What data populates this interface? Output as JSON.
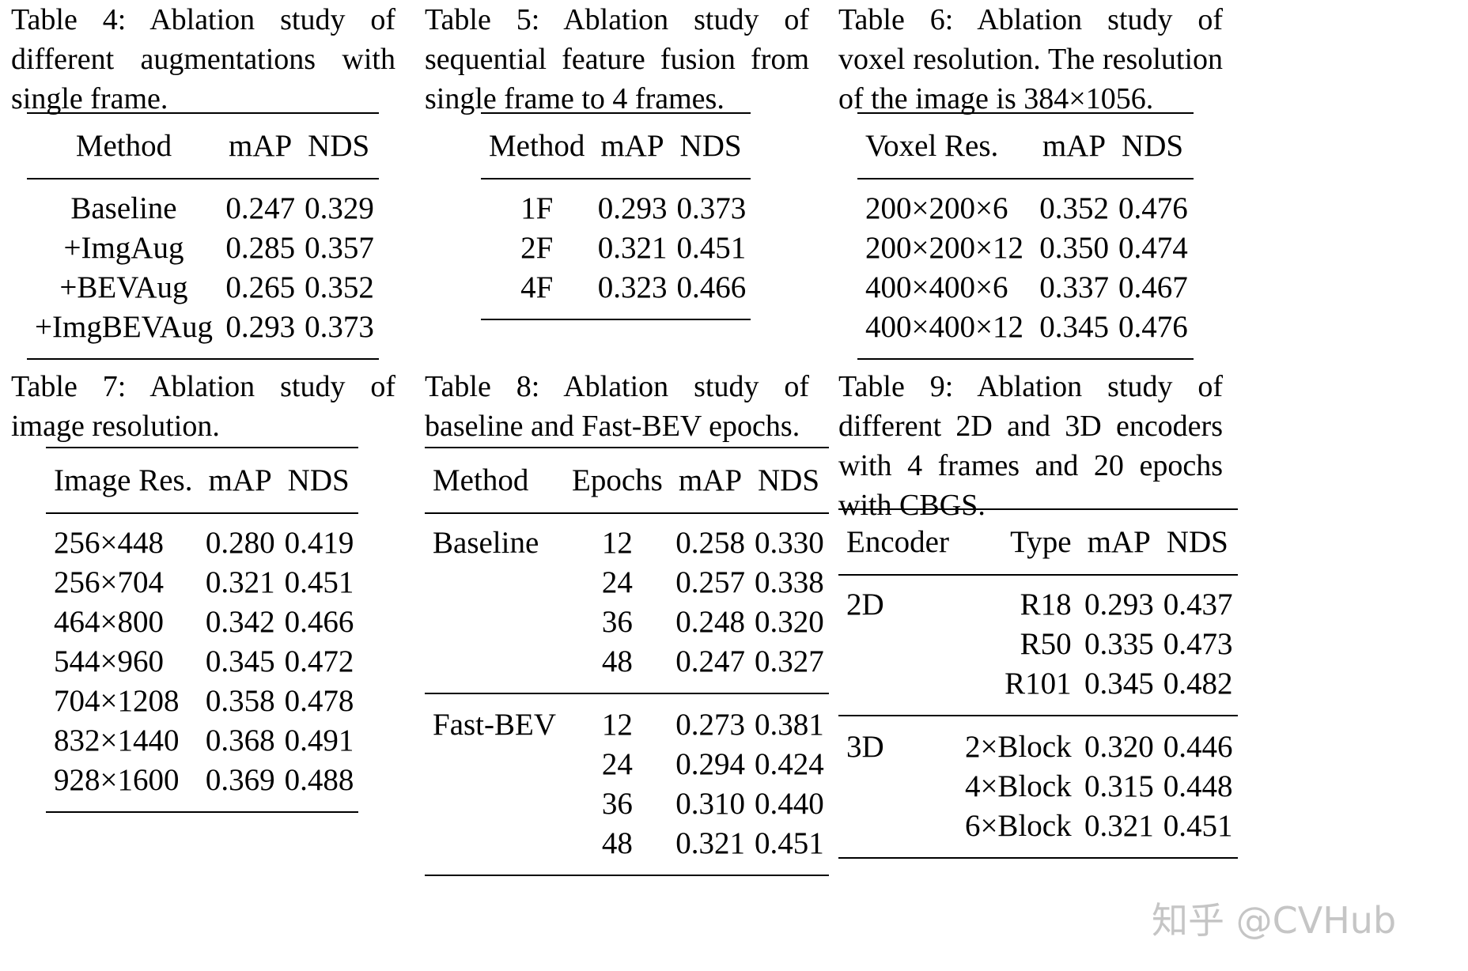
{
  "tables": [
    {
      "label": "Table 4:",
      "caption": "Ablation study of different augmentations with single frame.",
      "headers": [
        "Method",
        "mAP",
        "NDS"
      ],
      "rows": [
        [
          "Baseline",
          "0.247",
          "0.329"
        ],
        [
          "+ImgAug",
          "0.285",
          "0.357"
        ],
        [
          "+BEVAug",
          "0.265",
          "0.352"
        ],
        [
          "+ImgBEVAug",
          "0.293",
          "0.373"
        ]
      ]
    },
    {
      "label": "Table 5:",
      "caption": "Ablation study of sequential feature fusion from single frame to 4 frames.",
      "headers": [
        "Method",
        "mAP",
        "NDS"
      ],
      "rows": [
        [
          "1F",
          "0.293",
          "0.373"
        ],
        [
          "2F",
          "0.321",
          "0.451"
        ],
        [
          "4F",
          "0.323",
          "0.466"
        ]
      ]
    },
    {
      "label": "Table 6:",
      "caption": "Ablation study of voxel resolution. The resolution of the image is 384×1056.",
      "headers": [
        "Voxel Res.",
        "mAP",
        "NDS"
      ],
      "rows": [
        [
          "200×200×6",
          "0.352",
          "0.476"
        ],
        [
          "200×200×12",
          "0.350",
          "0.474"
        ],
        [
          "400×400×6",
          "0.337",
          "0.467"
        ],
        [
          "400×400×12",
          "0.345",
          "0.476"
        ]
      ]
    },
    {
      "label": "Table 7:",
      "caption": "Ablation study of image resolution.",
      "headers": [
        "Image Res.",
        "mAP",
        "NDS"
      ],
      "rows": [
        [
          "256×448",
          "0.280",
          "0.419"
        ],
        [
          "256×704",
          "0.321",
          "0.451"
        ],
        [
          "464×800",
          "0.342",
          "0.466"
        ],
        [
          "544×960",
          "0.345",
          "0.472"
        ],
        [
          "704×1208",
          "0.358",
          "0.478"
        ],
        [
          "832×1440",
          "0.368",
          "0.491"
        ],
        [
          "928×1600",
          "0.369",
          "0.488"
        ]
      ]
    },
    {
      "label": "Table 8:",
      "caption": "Ablation study of baseline and Fast-BEV epochs.",
      "headers": [
        "Method",
        "Epochs",
        "mAP",
        "NDS"
      ],
      "groups": [
        {
          "name": "Baseline",
          "rows": [
            [
              "12",
              "0.258",
              "0.330"
            ],
            [
              "24",
              "0.257",
              "0.338"
            ],
            [
              "36",
              "0.248",
              "0.320"
            ],
            [
              "48",
              "0.247",
              "0.327"
            ]
          ]
        },
        {
          "name": "Fast-BEV",
          "rows": [
            [
              "12",
              "0.273",
              "0.381"
            ],
            [
              "24",
              "0.294",
              "0.424"
            ],
            [
              "36",
              "0.310",
              "0.440"
            ],
            [
              "48",
              "0.321",
              "0.451"
            ]
          ]
        }
      ]
    },
    {
      "label": "Table 9:",
      "caption": "Ablation study of different 2D and 3D encoders with 4 frames and 20 epochs with CBGS.",
      "headers": [
        "Encoder",
        "Type",
        "mAP",
        "NDS"
      ],
      "groups": [
        {
          "name": "2D",
          "rows": [
            [
              "R18",
              "0.293",
              "0.437"
            ],
            [
              "R50",
              "0.335",
              "0.473"
            ],
            [
              "R101",
              "0.345",
              "0.482"
            ]
          ]
        },
        {
          "name": "3D",
          "rows": [
            [
              "2×Block",
              "0.320",
              "0.446"
            ],
            [
              "4×Block",
              "0.315",
              "0.448"
            ],
            [
              "6×Block",
              "0.321",
              "0.451"
            ]
          ]
        }
      ]
    }
  ],
  "watermark": "知乎 @CVHub"
}
